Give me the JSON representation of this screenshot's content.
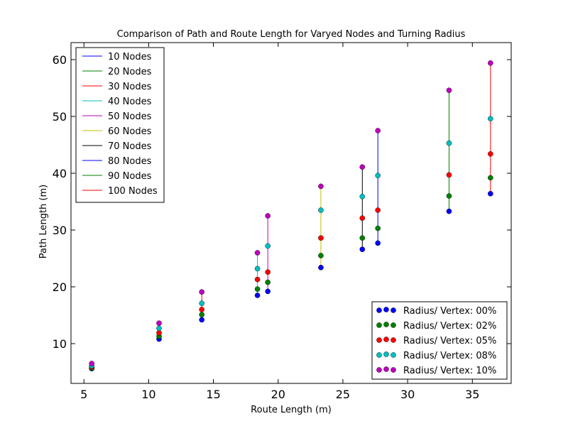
{
  "chart_data": {
    "type": "scatter",
    "title": "Comparison of Path and Route Length for Varyed Nodes and Turning Radius",
    "xlabel": "Route Length (m)",
    "ylabel": "Path Length (m)",
    "xlim": [
      4,
      38
    ],
    "ylim": [
      3,
      63
    ],
    "xticks": [
      5,
      10,
      15,
      20,
      25,
      30,
      35
    ],
    "yticks": [
      10,
      20,
      30,
      40,
      50,
      60
    ],
    "grid": false,
    "line_legend_position": "upper-left",
    "marker_legend_position": "lower-right",
    "node_series": [
      {
        "name": "10 Nodes",
        "color": "#0000ff",
        "x": 5.6,
        "y": [
          5.6,
          5.7,
          5.9,
          6.1,
          6.5
        ]
      },
      {
        "name": "20 Nodes",
        "color": "#008000",
        "x": 10.8,
        "y": [
          10.8,
          11.3,
          11.9,
          12.7,
          13.6
        ]
      },
      {
        "name": "30 Nodes",
        "color": "#ff0000",
        "x": 14.1,
        "y": [
          14.2,
          15.1,
          16.0,
          17.1,
          19.1
        ]
      },
      {
        "name": "40 Nodes",
        "color": "#00bfbf",
        "x": 18.4,
        "y": [
          18.5,
          19.6,
          21.3,
          23.2,
          26.0
        ]
      },
      {
        "name": "50 Nodes",
        "color": "#bf00bf",
        "x": 19.2,
        "y": [
          19.2,
          20.8,
          22.6,
          27.2,
          32.5
        ]
      },
      {
        "name": "60 Nodes",
        "color": "#bfbf00",
        "x": 23.3,
        "y": [
          23.4,
          25.5,
          28.6,
          33.5,
          37.7
        ]
      },
      {
        "name": "70 Nodes",
        "color": "#000000",
        "x": 26.5,
        "y": [
          26.6,
          28.6,
          32.1,
          35.9,
          41.1
        ]
      },
      {
        "name": "80 Nodes",
        "color": "#0000ff",
        "x": 27.7,
        "y": [
          27.7,
          30.3,
          33.5,
          39.6,
          47.5
        ]
      },
      {
        "name": "90 Nodes",
        "color": "#008000",
        "x": 33.2,
        "y": [
          33.3,
          36.0,
          39.7,
          45.3,
          54.6
        ]
      },
      {
        "name": "100 Nodes",
        "color": "#ff0000",
        "x": 36.4,
        "y": [
          36.4,
          39.2,
          43.4,
          49.6,
          59.4
        ]
      }
    ],
    "radius_series": [
      {
        "name": "Radius/ Vertex: 00%",
        "color": "#0000ff"
      },
      {
        "name": "Radius/ Vertex: 02%",
        "color": "#008000"
      },
      {
        "name": "Radius/ Vertex: 05%",
        "color": "#ff0000"
      },
      {
        "name": "Radius/ Vertex: 08%",
        "color": "#00bfbf"
      },
      {
        "name": "Radius/ Vertex: 10%",
        "color": "#bf00bf"
      }
    ]
  }
}
